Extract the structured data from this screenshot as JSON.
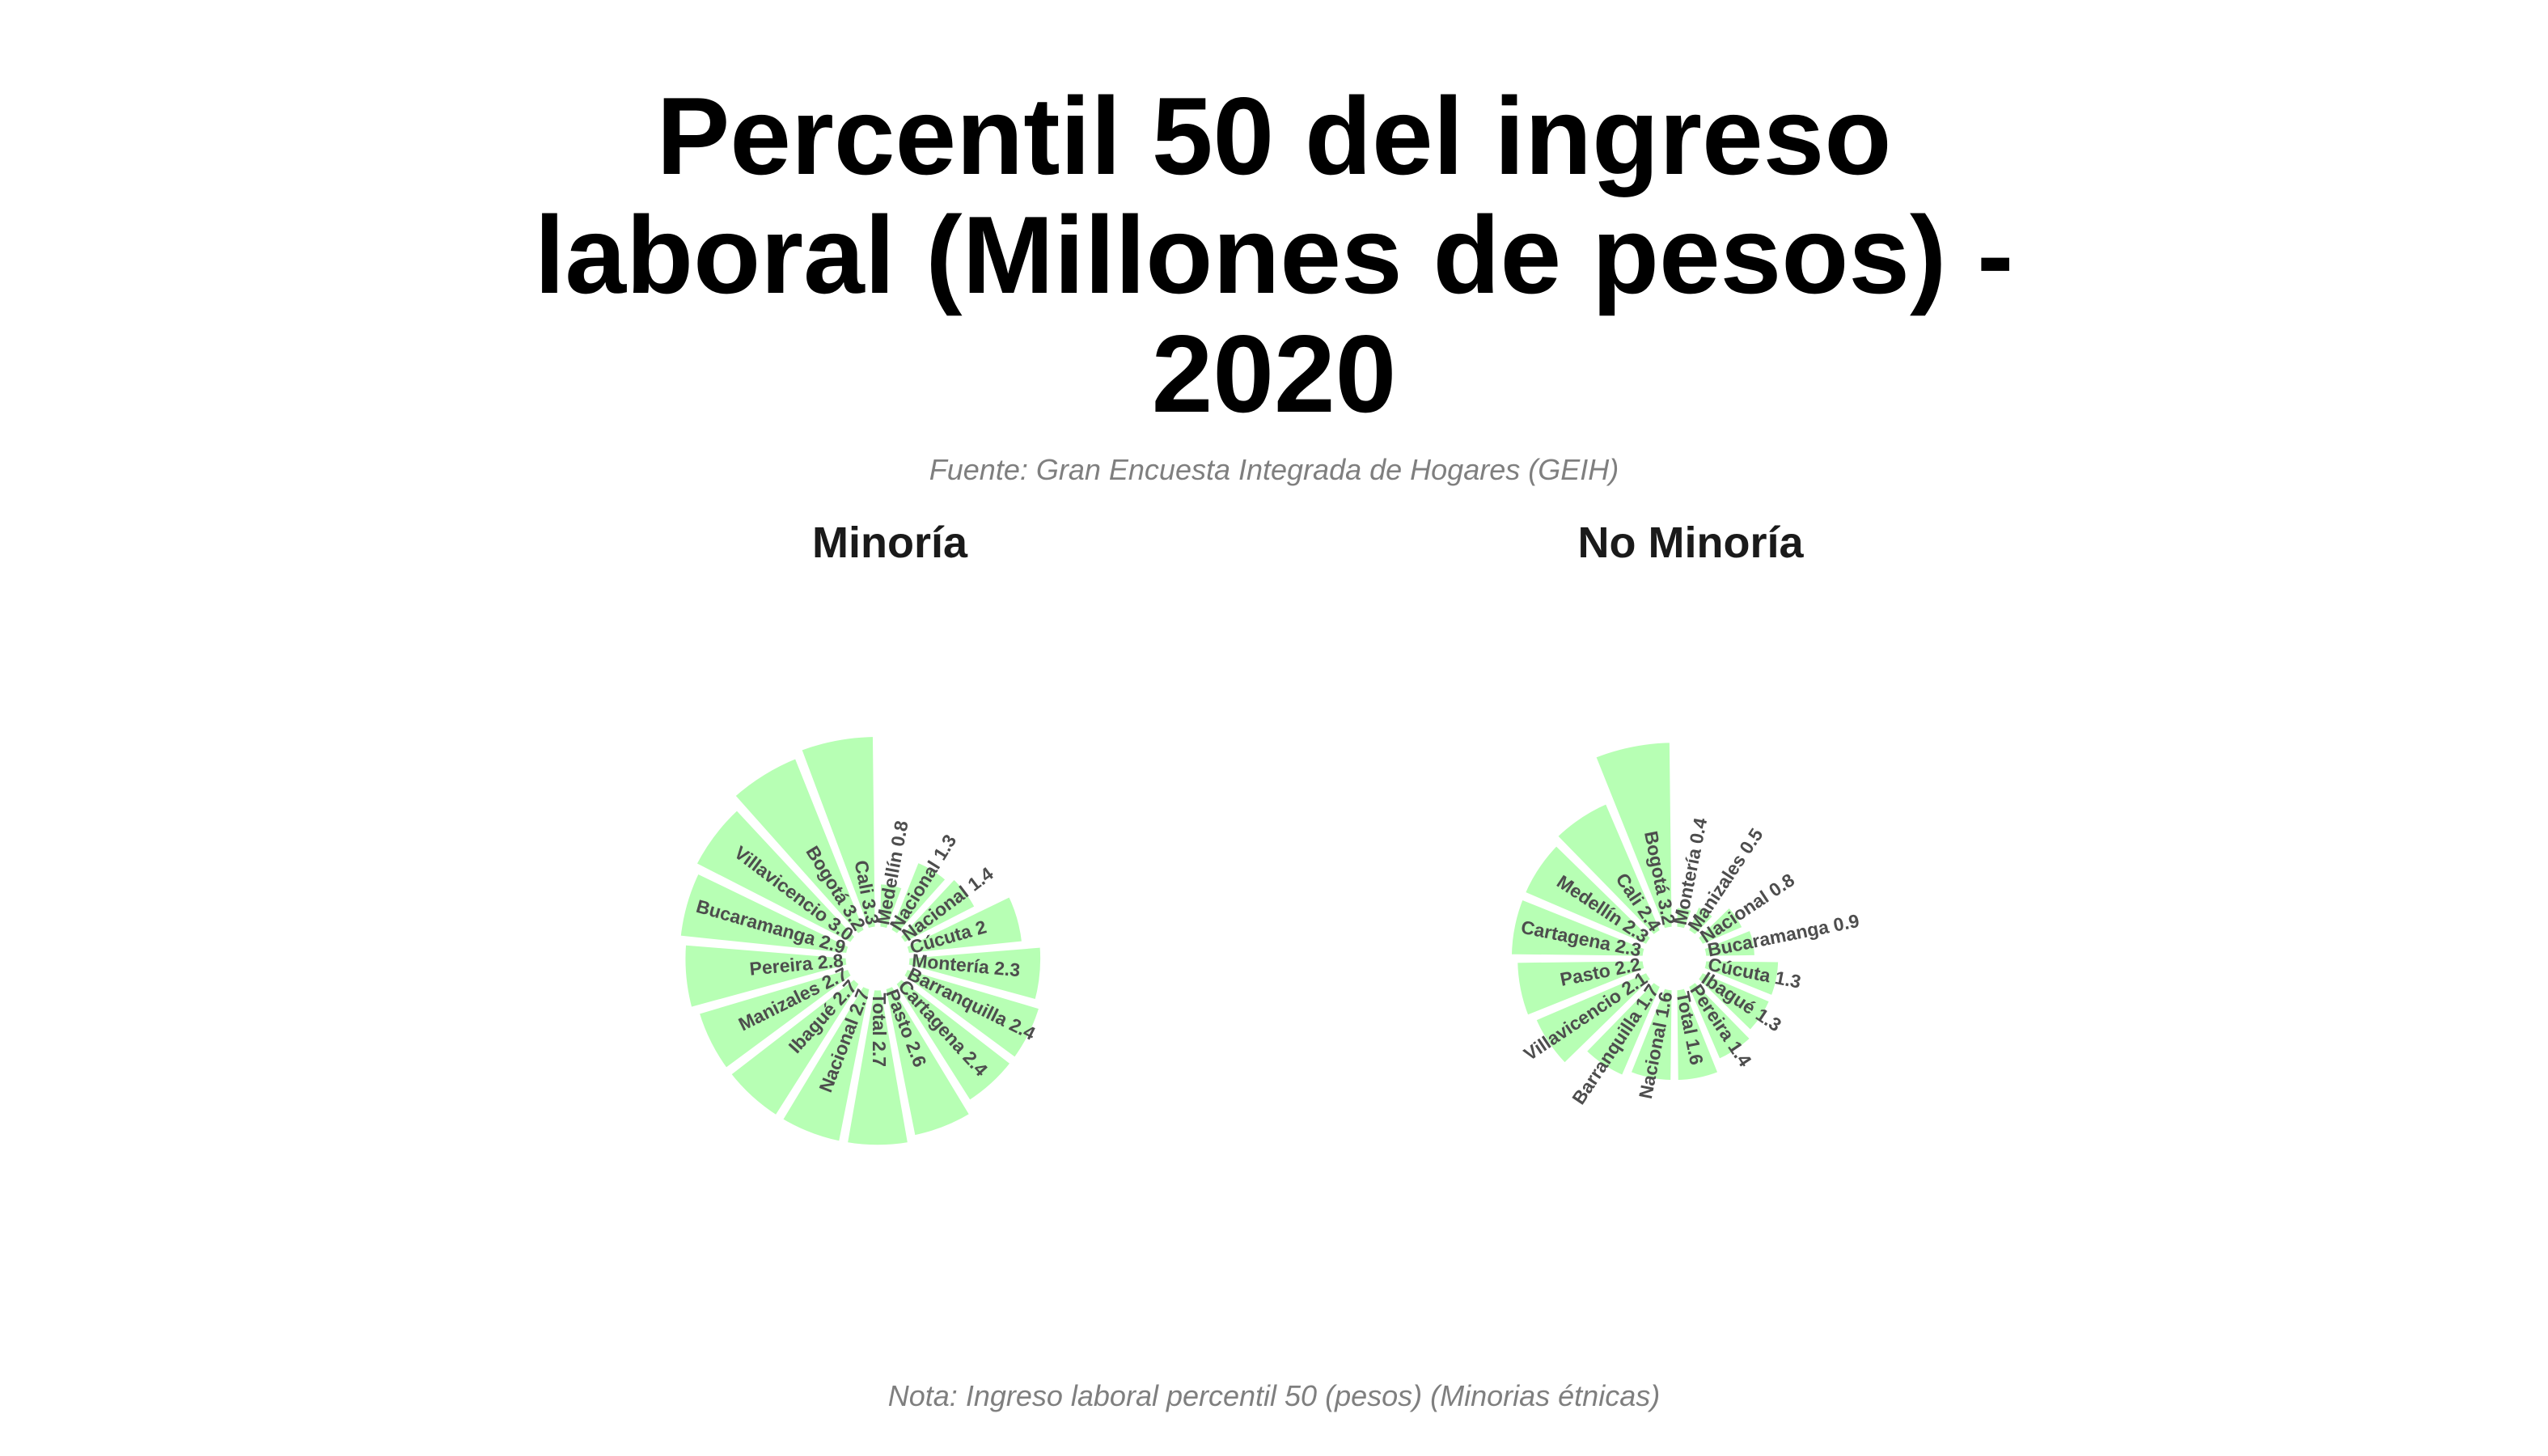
{
  "title": "Percentil 50 del ingreso laboral (Millones de pesos) - 2020",
  "subtitle": "Fuente: Gran Encuesta Integrada de Hogares (GEIH)",
  "caption": "Nota: Ingreso laboral percentil 50 (pesos) (Minorias étnicas)",
  "colors": {
    "bar_fill": "#b7ffb4",
    "bar_stroke": "#ffffff",
    "label_text": "#4d4d4d"
  },
  "chart_data": [
    {
      "type": "bar",
      "coord": "polar",
      "panel": "Minoría",
      "ylim": [
        -0.5,
        3.3
      ],
      "categories": [
        "Medellín",
        "Nacional",
        "Nacional",
        "Cúcuta",
        "Montería",
        "Barranquilla",
        "Cartagena",
        "Pasto",
        "Total",
        "Nacional",
        "Ibagué",
        "Manizales",
        "Pereira",
        "Bucaramanga",
        "Villavicencio",
        "Bogotá",
        "Cali"
      ],
      "values": [
        0.8,
        1.3,
        1.4,
        2,
        2.3,
        2.4,
        2.4,
        2.6,
        2.7,
        2.7,
        2.7,
        2.7,
        2.8,
        2.9,
        3.0,
        3.2,
        3.3
      ],
      "labels": [
        "Medellín 0.8",
        "Nacional 1.3",
        "Nacional 1.4",
        "Cúcuta 2",
        "Montería 2.3",
        "Barranquilla 2.4",
        "Cartagena 2.4",
        "Pasto 2.6",
        "Total 2.7",
        "Nacional 2.7",
        "Ibagué 2.7",
        "Manizales 2.7",
        "Pereira 2.8",
        "Bucaramanga 2.9",
        "Villavicencio 3.0",
        "Bogotá 3.2",
        "Cali 3.3"
      ]
    },
    {
      "type": "bar",
      "coord": "polar",
      "panel": "No Minoría",
      "ylim": [
        -0.5,
        3.3
      ],
      "categories": [
        "Montería",
        "Manizales",
        "Nacional",
        "Bucaramanga",
        "Cúcuta",
        "Ibagué",
        "Pereira",
        "Total",
        "Nacional",
        "Barranquilla",
        "Villavicencio",
        "Pasto",
        "Cartagena",
        "Medellín",
        "Cali",
        "Bogotá"
      ],
      "values": [
        0.4,
        0.5,
        0.8,
        0.9,
        1.3,
        1.3,
        1.4,
        1.6,
        1.6,
        1.7,
        2.1,
        2.2,
        2.3,
        2.3,
        2.4,
        3.2
      ],
      "labels": [
        "Montería 0.4",
        "Manizales 0.5",
        "Nacional 0.8",
        "Bucaramanga 0.9",
        "Cúcuta 1.3",
        "Ibagué 1.3",
        "Pereira 1.4",
        "Total 1.6",
        "Nacional 1.6",
        "Barranquilla 1.7",
        "Villavicencio 2.1",
        "Pasto 2.2",
        "Cartagena 2.3",
        "Medellín 2.3",
        "Cali 2.4",
        "Bogotá 3.2"
      ]
    }
  ]
}
